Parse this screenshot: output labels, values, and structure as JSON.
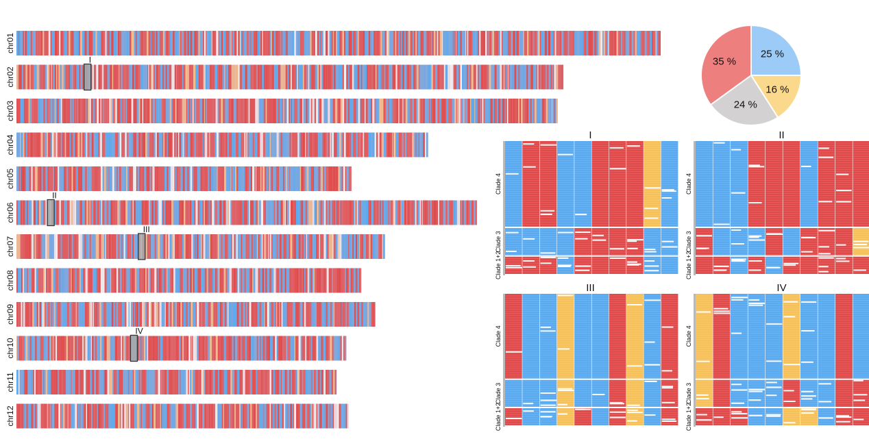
{
  "chart_data": [
    {
      "type": "heatmap",
      "title": "",
      "colors": {
        "red": "#e04a4a",
        "blue": "#5aaaf0",
        "yellow": "#f7c15a",
        "grey": "#c9c9c9",
        "bar_border": "#7d7d7d"
      },
      "chromosomes": [
        {
          "name": "chr01",
          "length": 1.0
        },
        {
          "name": "chr02",
          "length": 0.849
        },
        {
          "name": "chr03",
          "length": 0.84
        },
        {
          "name": "chr04",
          "length": 0.639
        },
        {
          "name": "chr05",
          "length": 0.52
        },
        {
          "name": "chr06",
          "length": 0.715
        },
        {
          "name": "chr07",
          "length": 0.572
        },
        {
          "name": "chr08",
          "length": 0.536
        },
        {
          "name": "chr09",
          "length": 0.557
        },
        {
          "name": "chr10",
          "length": 0.512
        },
        {
          "name": "chr11",
          "length": 0.497
        },
        {
          "name": "chr12",
          "length": 0.516
        }
      ],
      "regions": [
        {
          "label": "I",
          "chromosome": "chr02",
          "position": 0.105
        },
        {
          "label": "II",
          "chromosome": "chr06",
          "position": 0.048
        },
        {
          "label": "III",
          "chromosome": "chr07",
          "position": 0.189
        },
        {
          "label": "IV",
          "chromosome": "chr10",
          "position": 0.177
        }
      ]
    },
    {
      "type": "pie",
      "slices": [
        {
          "label": "25 %",
          "value": 25,
          "color": "#9ccbf7"
        },
        {
          "label": "16 %",
          "value": 16,
          "color": "#fbd98c"
        },
        {
          "label": "24 %",
          "value": 24,
          "color": "#d3d1d2"
        },
        {
          "label": "35 %",
          "value": 35,
          "color": "#ee7f7f"
        }
      ]
    },
    {
      "type": "heatmap",
      "panels": [
        {
          "title": "I",
          "clades": [
            "Clade 4",
            "Clade 3",
            "Clade 1+2"
          ],
          "columns": [
            [
              "B",
              "B",
              "R"
            ],
            [
              "R",
              "B",
              "R"
            ],
            [
              "R",
              "B",
              "R"
            ],
            [
              "B",
              "B",
              "B"
            ],
            [
              "B",
              "R",
              "R"
            ],
            [
              "R",
              "R",
              "R"
            ],
            [
              "R",
              "R",
              "R"
            ],
            [
              "R",
              "R",
              "R"
            ],
            [
              "Y",
              "B",
              "B"
            ],
            [
              "B",
              "B",
              "B"
            ]
          ]
        },
        {
          "title": "II",
          "clades": [
            "Clade 4",
            "Clade 3",
            "Clade 1+2"
          ],
          "columns": [
            [
              "B",
              "R",
              "R"
            ],
            [
              "B",
              "B",
              "R"
            ],
            [
              "B",
              "B",
              "B"
            ],
            [
              "R",
              "B",
              "R"
            ],
            [
              "R",
              "R",
              "B"
            ],
            [
              "R",
              "B",
              "R"
            ],
            [
              "B",
              "R",
              "R"
            ],
            [
              "R",
              "R",
              "R"
            ],
            [
              "R",
              "R",
              "R"
            ],
            [
              "R",
              "Y",
              "R"
            ]
          ]
        },
        {
          "title": "III",
          "clades": [
            "Clade 4",
            "Clade 3",
            "Clade 1+2"
          ],
          "columns": [
            [
              "R",
              "B",
              "R"
            ],
            [
              "B",
              "B",
              "B"
            ],
            [
              "B",
              "B",
              "B"
            ],
            [
              "Y",
              "Y",
              "Y"
            ],
            [
              "B",
              "B",
              "R"
            ],
            [
              "B",
              "B",
              "B"
            ],
            [
              "R",
              "R",
              "R"
            ],
            [
              "Y",
              "Y",
              "Y"
            ],
            [
              "B",
              "B",
              "B"
            ],
            [
              "R",
              "R",
              "R"
            ]
          ]
        },
        {
          "title": "IV",
          "clades": [
            "Clade 4",
            "Clade 3",
            "Clade 1+2"
          ],
          "columns": [
            [
              "Y",
              "Y",
              "R"
            ],
            [
              "R",
              "R",
              "R"
            ],
            [
              "B",
              "B",
              "R"
            ],
            [
              "B",
              "B",
              "B"
            ],
            [
              "B",
              "B",
              "B"
            ],
            [
              "Y",
              "R",
              "Y"
            ],
            [
              "B",
              "B",
              "Y"
            ],
            [
              "B",
              "B",
              "B"
            ],
            [
              "R",
              "R",
              "R"
            ],
            [
              "B",
              "R",
              "R"
            ]
          ]
        }
      ]
    }
  ]
}
